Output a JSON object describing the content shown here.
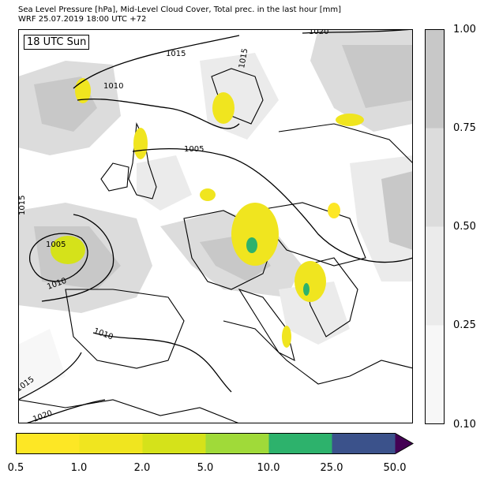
{
  "title_line1": "Sea Level Pressure [hPa], Mid-Level Cloud Cover, Total prec. in the last hour [mm]",
  "title_line2": "WRF 25.07.2019 18:00 UTC +72",
  "time_label": "18 UTC Sun",
  "isobar_labels": [
    "1020",
    "1015",
    "1010",
    "1005",
    "1015",
    "1005",
    "1010",
    "1010",
    "1015",
    "1020",
    "1015"
  ],
  "cloud_colorbar": {
    "ticks": [
      "1.00",
      "0.75",
      "0.50",
      "0.25",
      "0.10"
    ],
    "colors": [
      "#c8c8c8",
      "#dcdcdc",
      "#ebebeb",
      "#f7f7f7"
    ]
  },
  "precip_colorbar": {
    "ticks": [
      "0.5",
      "1.0",
      "2.0",
      "5.0",
      "10.0",
      "25.0",
      "50.0"
    ],
    "colors": [
      "#fde725",
      "#f0e51f",
      "#d5e21a",
      "#a0da39",
      "#2db26c",
      "#3b528b",
      "#440154"
    ]
  }
}
